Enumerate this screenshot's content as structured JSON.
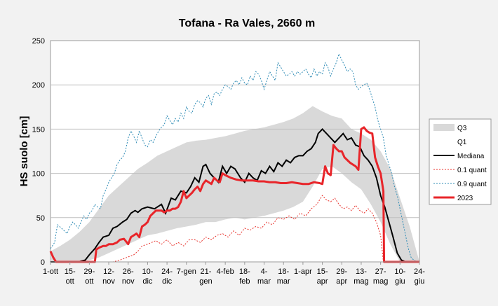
{
  "chart_data": {
    "type": "line",
    "title": "Tofana - Ra Vales, 2660 m",
    "ylabel": "HS suolo [cm]",
    "xlabel": "",
    "ylim": [
      0,
      250
    ],
    "yticks": [
      0,
      50,
      100,
      150,
      200,
      250
    ],
    "xlim": [
      0,
      266
    ],
    "xticks": [
      {
        "day": 0,
        "line1": "1-ott",
        "line2": ""
      },
      {
        "day": 14,
        "line1": "15-",
        "line2": "ott"
      },
      {
        "day": 28,
        "line1": "29-",
        "line2": "ott"
      },
      {
        "day": 42,
        "line1": "12-",
        "line2": "nov"
      },
      {
        "day": 56,
        "line1": "26-",
        "line2": "nov"
      },
      {
        "day": 70,
        "line1": "10-",
        "line2": "dic"
      },
      {
        "day": 84,
        "line1": "24-",
        "line2": "dic"
      },
      {
        "day": 98,
        "line1": "7-gen",
        "line2": ""
      },
      {
        "day": 112,
        "line1": "21-",
        "line2": "gen"
      },
      {
        "day": 126,
        "line1": "4-feb",
        "line2": ""
      },
      {
        "day": 140,
        "line1": "18-",
        "line2": "feb"
      },
      {
        "day": 154,
        "line1": "4-",
        "line2": "mar"
      },
      {
        "day": 168,
        "line1": "18-",
        "line2": "mar"
      },
      {
        "day": 182,
        "line1": "1-apr",
        "line2": ""
      },
      {
        "day": 196,
        "line1": "15-",
        "line2": "apr"
      },
      {
        "day": 210,
        "line1": "29-",
        "line2": "apr"
      },
      {
        "day": 224,
        "line1": "13-",
        "line2": "mag"
      },
      {
        "day": 238,
        "line1": "27-",
        "line2": "mag"
      },
      {
        "day": 252,
        "line1": "10-",
        "line2": "giu"
      },
      {
        "day": 266,
        "line1": "24-",
        "line2": "giu"
      }
    ],
    "legend_position": "right",
    "colors": {
      "band": "#d9d9d9",
      "median": "#000000",
      "q01": "#e8302a",
      "q09": "#2e8bb5",
      "y2023": "#e8252a",
      "grid": "#bfbfbf",
      "axis": "#999999"
    },
    "legend": [
      {
        "key": "q3",
        "label": "Q3"
      },
      {
        "key": "q1",
        "label": "Q1"
      },
      {
        "key": "median",
        "label": "Mediana"
      },
      {
        "key": "q01",
        "label": "0.1 quant"
      },
      {
        "key": "q09",
        "label": "0.9 quant"
      },
      {
        "key": "y2023",
        "label": "2023"
      }
    ],
    "series": [
      {
        "name": "Q3",
        "key": "q3",
        "x": [
          0,
          7,
          14,
          21,
          28,
          35,
          42,
          49,
          56,
          63,
          70,
          77,
          84,
          91,
          98,
          105,
          112,
          119,
          126,
          133,
          140,
          147,
          154,
          161,
          168,
          175,
          182,
          189,
          196,
          203,
          210,
          217,
          224,
          231,
          238,
          245,
          252,
          259,
          266
        ],
        "values": [
          12,
          18,
          25,
          34,
          45,
          60,
          75,
          85,
          95,
          105,
          112,
          120,
          125,
          130,
          135,
          137,
          138,
          140,
          142,
          145,
          148,
          150,
          152,
          155,
          158,
          162,
          168,
          176,
          170,
          165,
          162,
          150,
          145,
          138,
          125,
          105,
          72,
          40,
          0
        ]
      },
      {
        "name": "Q1",
        "key": "q1",
        "x": [
          0,
          7,
          14,
          21,
          28,
          35,
          42,
          49,
          56,
          63,
          70,
          77,
          84,
          91,
          98,
          105,
          112,
          119,
          126,
          133,
          140,
          147,
          154,
          161,
          168,
          175,
          182,
          189,
          196,
          203,
          210,
          217,
          224,
          231,
          238,
          245,
          252,
          259,
          266
        ],
        "values": [
          0,
          0,
          0,
          0,
          2,
          5,
          10,
          15,
          20,
          25,
          30,
          32,
          35,
          38,
          40,
          42,
          45,
          45,
          48,
          50,
          48,
          50,
          52,
          55,
          58,
          62,
          68,
          85,
          105,
          108,
          100,
          90,
          82,
          65,
          45,
          20,
          0,
          0,
          0
        ]
      },
      {
        "name": "Mediana",
        "key": "median",
        "x": [
          0,
          5,
          10,
          15,
          20,
          25,
          28,
          32,
          35,
          38,
          42,
          45,
          48,
          52,
          55,
          58,
          61,
          63,
          66,
          70,
          75,
          80,
          83,
          87,
          90,
          94,
          98,
          101,
          104,
          107,
          110,
          112,
          115,
          118,
          121,
          124,
          127,
          130,
          133,
          137,
          140,
          143,
          146,
          149,
          152,
          155,
          158,
          161,
          164,
          167,
          170,
          173,
          176,
          179,
          182,
          185,
          188,
          191,
          193,
          196,
          199,
          202,
          205,
          208,
          211,
          214,
          217,
          220,
          223,
          226,
          229,
          232,
          235,
          238,
          241,
          244,
          247,
          250,
          253,
          256
        ],
        "values": [
          0,
          0,
          0,
          0,
          0,
          2,
          8,
          15,
          22,
          28,
          30,
          38,
          40,
          45,
          48,
          55,
          58,
          56,
          60,
          62,
          60,
          65,
          55,
          72,
          70,
          80,
          78,
          85,
          95,
          90,
          108,
          110,
          100,
          95,
          90,
          108,
          100,
          108,
          105,
          95,
          90,
          100,
          95,
          92,
          103,
          100,
          108,
          102,
          112,
          108,
          115,
          112,
          118,
          120,
          120,
          125,
          128,
          135,
          145,
          150,
          145,
          140,
          135,
          140,
          145,
          138,
          140,
          132,
          130,
          120,
          115,
          108,
          95,
          75,
          62,
          45,
          28,
          10,
          2,
          0
        ]
      },
      {
        "name": "0.1 quant",
        "key": "q01",
        "x": [
          0,
          45,
          50,
          55,
          60,
          63,
          66,
          70,
          73,
          76,
          80,
          84,
          88,
          92,
          96,
          100,
          104,
          108,
          112,
          116,
          120,
          124,
          128,
          132,
          136,
          140,
          144,
          148,
          152,
          156,
          160,
          164,
          168,
          172,
          176,
          180,
          184,
          188,
          192,
          196,
          199,
          202,
          205,
          208,
          211,
          214,
          217,
          220,
          223,
          226,
          229,
          232,
          235,
          238,
          240
        ],
        "values": [
          0,
          0,
          2,
          5,
          8,
          12,
          18,
          20,
          22,
          24,
          20,
          25,
          18,
          22,
          18,
          25,
          25,
          22,
          28,
          25,
          30,
          32,
          28,
          35,
          30,
          38,
          36,
          40,
          38,
          45,
          42,
          50,
          48,
          52,
          48,
          55,
          52,
          60,
          65,
          75,
          70,
          68,
          72,
          65,
          60,
          62,
          58,
          64,
          58,
          55,
          60,
          55,
          45,
          30,
          0
        ],
        "sparse": true
      },
      {
        "name": "0.9 quant",
        "key": "q09",
        "x": [
          0,
          3,
          5,
          8,
          10,
          12,
          14,
          16,
          18,
          20,
          22,
          24,
          26,
          28,
          30,
          32,
          34,
          36,
          38,
          40,
          42,
          44,
          46,
          48,
          50,
          52,
          54,
          56,
          58,
          60,
          62,
          64,
          66,
          68,
          70,
          72,
          74,
          76,
          78,
          80,
          82,
          84,
          86,
          88,
          90,
          92,
          94,
          96,
          98,
          100,
          102,
          104,
          106,
          108,
          110,
          112,
          114,
          116,
          118,
          120,
          122,
          124,
          126,
          128,
          130,
          132,
          134,
          136,
          138,
          140,
          142,
          144,
          146,
          148,
          150,
          152,
          154,
          156,
          158,
          160,
          162,
          164,
          166,
          168,
          170,
          172,
          174,
          176,
          178,
          180,
          182,
          184,
          186,
          188,
          190,
          192,
          194,
          196,
          198,
          200,
          202,
          204,
          206,
          208,
          210,
          212,
          214,
          216,
          218,
          220,
          222,
          224,
          226,
          228,
          230,
          232,
          234,
          236,
          238,
          240,
          242,
          244,
          246,
          248,
          250,
          252,
          254,
          256,
          258,
          260,
          262,
          264,
          266
        ],
        "values": [
          15,
          22,
          42,
          38,
          35,
          32,
          40,
          45,
          42,
          38,
          45,
          52,
          48,
          55,
          58,
          65,
          62,
          60,
          75,
          82,
          90,
          95,
          100,
          110,
          115,
          118,
          125,
          140,
          148,
          142,
          135,
          148,
          140,
          132,
          130,
          138,
          135,
          142,
          148,
          152,
          155,
          165,
          160,
          155,
          162,
          158,
          168,
          162,
          175,
          170,
          168,
          178,
          182,
          180,
          175,
          185,
          188,
          178,
          190,
          192,
          188,
          195,
          200,
          198,
          195,
          202,
          205,
          200,
          208,
          202,
          200,
          210,
          205,
          215,
          212,
          205,
          195,
          205,
          215,
          210,
          205,
          225,
          220,
          215,
          210,
          212,
          215,
          210,
          215,
          212,
          215,
          218,
          212,
          208,
          218,
          210,
          215,
          212,
          225,
          220,
          210,
          218,
          225,
          235,
          228,
          222,
          215,
          218,
          215,
          200,
          195,
          198,
          200,
          202,
          195,
          185,
          175,
          160,
          150,
          140,
          120,
          110,
          100,
          85,
          75,
          60,
          45,
          30,
          15,
          5,
          2,
          0,
          0
        ],
        "sparse": true
      },
      {
        "name": "2023",
        "key": "y2023",
        "x": [
          0,
          2,
          4,
          8,
          12,
          16,
          20,
          24,
          28,
          30,
          32,
          33,
          35,
          38,
          40,
          42,
          45,
          48,
          50,
          53,
          56,
          58,
          60,
          62,
          64,
          66,
          68,
          70,
          72,
          74,
          76,
          78,
          80,
          82,
          84,
          86,
          88,
          90,
          92,
          94,
          96,
          98,
          100,
          102,
          104,
          106,
          108,
          110,
          112,
          114,
          116,
          118,
          120,
          122,
          124,
          126,
          130,
          134,
          138,
          142,
          146,
          150,
          154,
          158,
          162,
          166,
          170,
          174,
          178,
          182,
          186,
          190,
          194,
          196,
          198,
          200,
          202,
          204,
          206,
          208,
          210,
          212,
          214,
          216,
          218,
          220,
          222,
          224,
          226,
          228,
          230,
          232,
          234,
          236,
          238,
          240,
          240.5,
          242,
          266
        ],
        "values": [
          12,
          5,
          0,
          0,
          0,
          0,
          0,
          0,
          0,
          0,
          0,
          14,
          16,
          18,
          18,
          20,
          20,
          22,
          25,
          26,
          20,
          28,
          30,
          32,
          28,
          40,
          42,
          45,
          52,
          55,
          58,
          58,
          58,
          56,
          58,
          58,
          60,
          60,
          62,
          68,
          80,
          72,
          75,
          78,
          82,
          85,
          80,
          88,
          92,
          90,
          88,
          95,
          92,
          90,
          100,
          98,
          95,
          93,
          92,
          92,
          92,
          91,
          91,
          90,
          90,
          89,
          89,
          90,
          89,
          88,
          88,
          90,
          89,
          88,
          108,
          100,
          98,
          132,
          128,
          125,
          125,
          118,
          115,
          112,
          110,
          108,
          104,
          150,
          152,
          148,
          146,
          145,
          118,
          108,
          100,
          80,
          0,
          0,
          0
        ]
      }
    ]
  }
}
